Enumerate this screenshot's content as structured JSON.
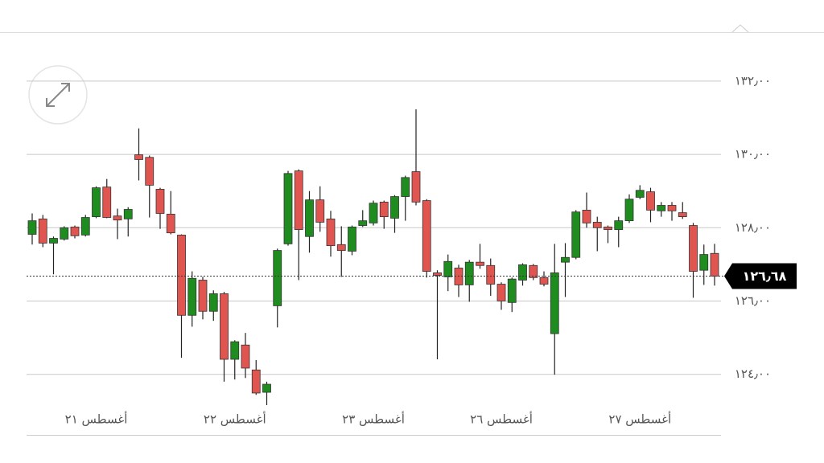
{
  "chart_data": {
    "type": "candlestick",
    "categories": [
      null,
      null,
      null,
      null,
      null,
      null,
      "أغسطس ٢١",
      null,
      null,
      null,
      null,
      null,
      null,
      null,
      null,
      null,
      null,
      null,
      null,
      "أغسطس ٢٢",
      null,
      null,
      null,
      null,
      null,
      null,
      null,
      null,
      null,
      null,
      null,
      null,
      "أغسطس ٢٣",
      null,
      null,
      null,
      null,
      null,
      null,
      null,
      null,
      null,
      null,
      null,
      "أغسطس ٢٦",
      null,
      null,
      null,
      null,
      null,
      null,
      null,
      null,
      null,
      null,
      null,
      null,
      "أغسطس ٢٧",
      null,
      null,
      null,
      null,
      null,
      null,
      null
    ],
    "open": [
      127.82,
      128.24,
      127.58,
      127.69,
      128.02,
      127.8,
      128.3,
      129.11,
      128.32,
      128.24,
      129.99,
      129.92,
      129.05,
      128.37,
      127.8,
      125.61,
      126.57,
      125.72,
      126.2,
      124.41,
      124.8,
      124.12,
      123.51,
      125.87,
      127.56,
      129.55,
      127.76,
      128.76,
      128.24,
      127.54,
      127.36,
      128.06,
      128.13,
      128.7,
      128.26,
      128.85,
      129.53,
      128.74,
      126.77,
      126.66,
      126.9,
      126.44,
      127.06,
      126.97,
      126.46,
      125.96,
      126.57,
      126.97,
      126.64,
      125.11,
      127.06,
      127.19,
      128.48,
      128.15,
      128.02,
      127.95,
      128.19,
      128.83,
      128.98,
      128.46,
      128.61,
      128.41,
      128.06,
      126.84,
      127.3
    ],
    "high": [
      128.39,
      128.35,
      127.76,
      128.04,
      128.06,
      128.35,
      129.13,
      129.33,
      128.52,
      128.56,
      130.71,
      129.97,
      129.09,
      129.0,
      127.82,
      126.81,
      126.66,
      126.29,
      126.25,
      124.93,
      125.13,
      124.39,
      123.8,
      127.43,
      129.55,
      129.59,
      129.0,
      129.13,
      128.46,
      128.04,
      128.06,
      128.48,
      128.74,
      128.74,
      128.89,
      129.42,
      131.23,
      128.78,
      126.84,
      127.27,
      126.99,
      127.12,
      127.56,
      127.16,
      126.51,
      126.64,
      127.03,
      127.01,
      126.81,
      127.56,
      127.58,
      128.48,
      128.96,
      128.3,
      128.06,
      128.3,
      128.91,
      129.16,
      129.09,
      128.7,
      128.7,
      128.7,
      128.13,
      127.54,
      127.56
    ],
    "low": [
      127.54,
      127.47,
      126.73,
      127.65,
      127.71,
      127.76,
      128.26,
      128.26,
      127.69,
      127.76,
      129.29,
      128.28,
      127.97,
      127.82,
      124.45,
      125.3,
      125.5,
      125.46,
      123.8,
      123.86,
      123.9,
      123.44,
      123.16,
      125.28,
      127.51,
      126.57,
      127.32,
      127.89,
      127.21,
      126.66,
      127.25,
      128.02,
      128.06,
      127.97,
      127.86,
      128.19,
      128.61,
      126.64,
      124.41,
      126.27,
      126.11,
      125.98,
      126.88,
      126.14,
      125.76,
      125.7,
      126.42,
      126.57,
      126.4,
      123.99,
      126.11,
      127.14,
      128.0,
      127.36,
      127.58,
      127.47,
      128.13,
      128.78,
      128.15,
      128.3,
      128.19,
      128.24,
      126.09,
      126.44,
      126.42
    ],
    "close": [
      128.19,
      127.58,
      127.71,
      128.0,
      127.78,
      128.28,
      129.09,
      128.28,
      128.21,
      128.5,
      129.86,
      129.16,
      128.39,
      127.86,
      125.61,
      126.62,
      125.72,
      126.2,
      124.41,
      124.89,
      124.17,
      123.49,
      123.73,
      127.38,
      129.48,
      127.95,
      128.76,
      128.15,
      127.51,
      127.38,
      128.02,
      128.19,
      128.67,
      128.3,
      128.85,
      129.37,
      128.7,
      126.81,
      126.7,
      127.08,
      126.44,
      127.06,
      126.97,
      126.46,
      126.0,
      126.6,
      126.99,
      126.64,
      126.46,
      126.77,
      127.19,
      128.43,
      128.13,
      128.0,
      127.95,
      128.19,
      128.78,
      129.02,
      128.48,
      128.61,
      128.46,
      128.3,
      126.81,
      127.27,
      126.68
    ],
    "up_color": "#1e8c1e",
    "down_color": "#e05550",
    "ylim": [
      123,
      133
    ],
    "yticks": [
      {
        "value": 124,
        "label": "١٢٤٫٠٠"
      },
      {
        "value": 126,
        "label": "١٢٦٫٠٠"
      },
      {
        "value": 128,
        "label": "١٢٨٫٠٠"
      },
      {
        "value": 130,
        "label": "١٣٠٫٠٠"
      },
      {
        "value": 132,
        "label": "١٣٢٫٠٠"
      }
    ],
    "grid": true,
    "last_price": {
      "value": 126.68,
      "label": "١٢٦٫٦٨"
    }
  }
}
